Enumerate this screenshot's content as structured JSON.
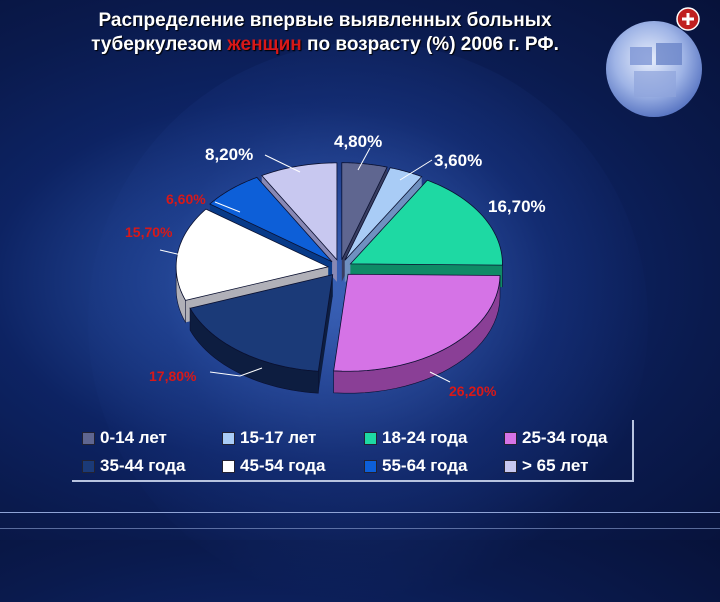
{
  "title": {
    "line1": "Распределение впервые выявленных больных",
    "line2_pre": "туберкулезом ",
    "line2_hl": "женщин",
    "line2_post": " по возрасту (%) 2006 г. РФ."
  },
  "colors": {
    "highlight": "#d81818",
    "text": "#ffffff"
  },
  "chart_data": {
    "type": "pie",
    "legend": "bottom",
    "slices": [
      {
        "name": "0-14 лет",
        "value": 4.8,
        "label": "4,80%",
        "color": "#5f6690",
        "side": "#383d60"
      },
      {
        "name": "15-17 лет",
        "value": 3.6,
        "label": "3,60%",
        "color": "#a9ccf6",
        "side": "#6f90c0"
      },
      {
        "name": "18-24 года",
        "value": 16.7,
        "label": "16,70%",
        "color": "#1ed9a3",
        "side": "#0f8a66"
      },
      {
        "name": "25-34 года",
        "value": 26.2,
        "label": "26,20%",
        "color": "#d573e6",
        "side": "#8a3f96"
      },
      {
        "name": "35-44 года",
        "value": 17.8,
        "label": "17,80%",
        "color": "#1b3a78",
        "side": "#0d1d40"
      },
      {
        "name": "45-54 года",
        "value": 15.7,
        "label": "15,70%",
        "color": "#ffffff",
        "side": "#b0b0b8"
      },
      {
        "name": "55-64 года",
        "value": 6.6,
        "label": "6,60%",
        "color": "#0d5fd8",
        "side": "#083a88"
      },
      {
        "name": "> 65 лет",
        "value": 8.2,
        "label": "8,20%",
        "color": "#c8c8f0",
        "side": "#8888b4"
      }
    ]
  }
}
